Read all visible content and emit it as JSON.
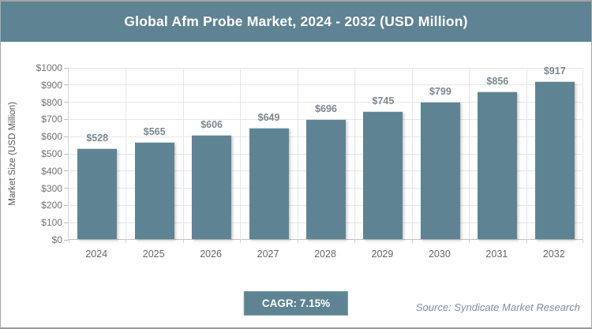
{
  "header": {
    "title": "Global Afm Probe Market, 2024 - 2032 (USD Million)"
  },
  "chart_data": {
    "type": "bar",
    "title": "Global Afm Probe Market, 2024 - 2032 (USD Million)",
    "categories": [
      "2024",
      "2025",
      "2026",
      "2027",
      "2028",
      "2029",
      "2030",
      "2031",
      "2032"
    ],
    "values": [
      528,
      565,
      606,
      649,
      696,
      745,
      799,
      856,
      917
    ],
    "value_labels": [
      "$528",
      "$565",
      "$606",
      "$649",
      "$696",
      "$745",
      "$799",
      "$856",
      "$917"
    ],
    "xlabel": "",
    "ylabel": "Market Size (USD Million)",
    "ylim": [
      0,
      1000
    ],
    "ytick_interval": 100,
    "ytick_prefix": "$",
    "grid": true,
    "legend_position": "none",
    "bar_color": "#5E8494"
  },
  "footer": {
    "cagr_label": "CAGR: 7.15%",
    "source_label": "Source: Syndicate Market Research"
  },
  "colors": {
    "accent_teal": "#5E8494",
    "grid_line": "#E5E7E8",
    "axis_line": "#C2C2C2",
    "tick_label": "#737373",
    "value_label": "#7C8890",
    "x_label": "#666666",
    "source_text": "#7E93A0",
    "frame_border": "#A8A8A8",
    "title_text": "#FFFFFF"
  }
}
